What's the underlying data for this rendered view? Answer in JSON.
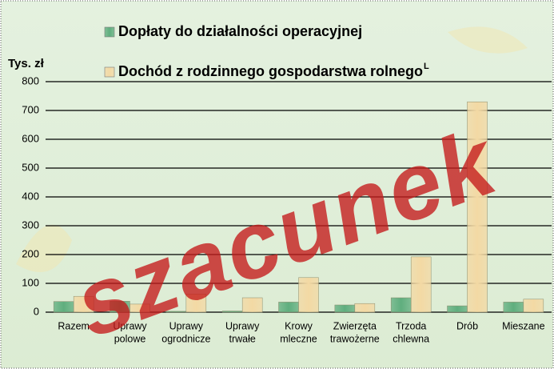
{
  "chart_data": {
    "type": "bar",
    "y_label": "Tys. zł",
    "watermark": "szacunek",
    "categories": [
      [
        "Razem"
      ],
      [
        "Uprawy",
        "polowe"
      ],
      [
        "Uprawy",
        "ogrodnicze"
      ],
      [
        "Uprawy",
        "trwałe"
      ],
      [
        "Krowy",
        "mleczne"
      ],
      [
        "Zwierzęta",
        "trawożerne"
      ],
      [
        "Trzoda",
        "chlewna"
      ],
      [
        "Drób"
      ],
      [
        "Mieszane"
      ]
    ],
    "series": [
      {
        "name": "Dopłaty do działalności operacyjnej",
        "color": "#5fae7e",
        "values": [
          37,
          38,
          3,
          4,
          35,
          25,
          50,
          22,
          35
        ]
      },
      {
        "name": "Dochód z rodzinnego gospodarstwa rolnego",
        "name_mark": "L",
        "color": "#f3d9a4",
        "values": [
          55,
          28,
          63,
          50,
          120,
          30,
          192,
          730,
          45
        ]
      }
    ],
    "ylim": [
      0,
      800
    ],
    "yticks": [
      0,
      100,
      200,
      300,
      400,
      500,
      600,
      700,
      800
    ],
    "grid": true
  }
}
